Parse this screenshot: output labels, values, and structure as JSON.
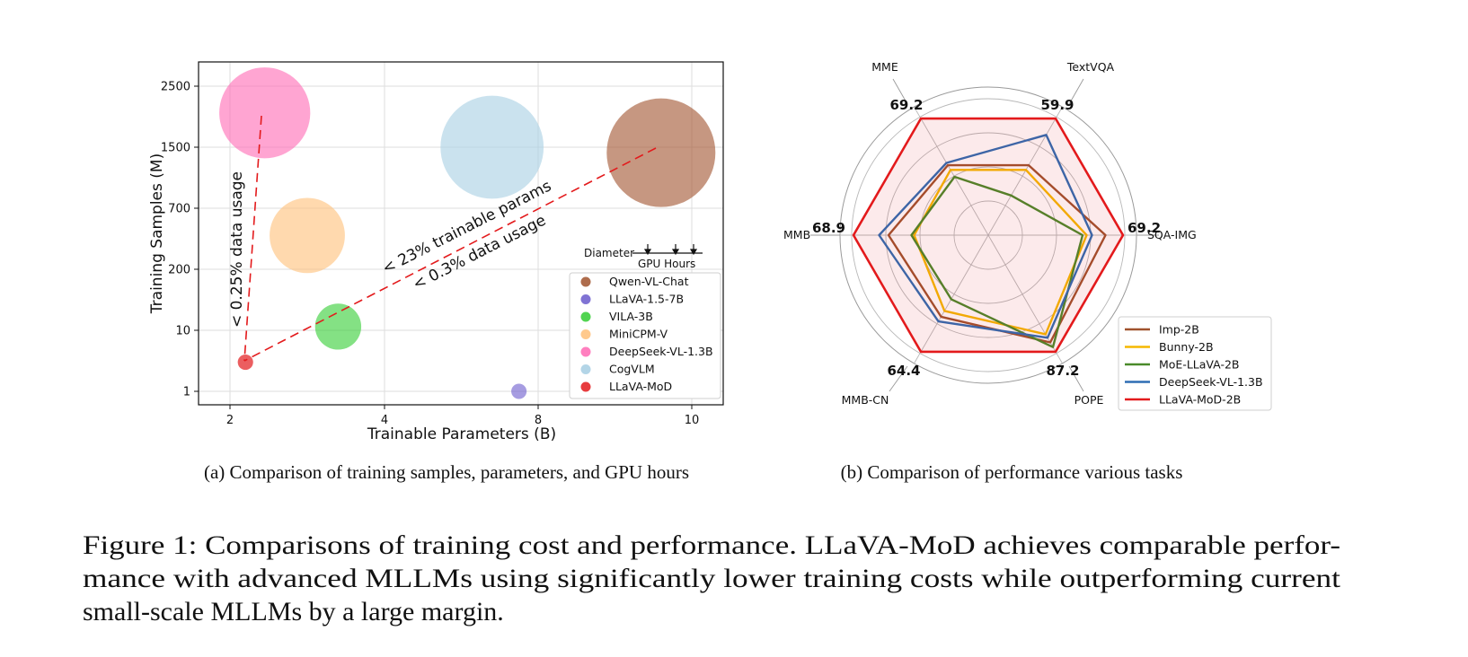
{
  "chart_data": [
    {
      "type": "scatter",
      "title": "Comparison of training samples, parameters, and GPU hours",
      "xlabel": "Trainable Parameters (B)",
      "ylabel": "Training Samples (M)",
      "xlim": [
        1.2,
        10.8
      ],
      "x_ticks": [
        {
          "value": 2,
          "label": "2"
        },
        {
          "value": 4,
          "label": "4"
        },
        {
          "value": 8,
          "label": "8"
        },
        {
          "value": 10,
          "label": "10"
        }
      ],
      "y_ticks": [
        {
          "value": 1,
          "label": "1"
        },
        {
          "value": 10,
          "label": "10"
        },
        {
          "value": 200,
          "label": "200"
        },
        {
          "value": 700,
          "label": "700"
        },
        {
          "value": 1500,
          "label": "1500"
        },
        {
          "value": 2500,
          "label": "2500"
        }
      ],
      "series": [
        {
          "name": "Qwen-VL-Chat",
          "x": 9.6,
          "y": 1400,
          "gpu_hours": 100,
          "color": "#a0522d"
        },
        {
          "name": "LLaVA-1.5-7B",
          "x": 7.5,
          "y": 1,
          "gpu_hours": 2,
          "color": "#6a5acd"
        },
        {
          "name": "VILA-3B",
          "x": 3.4,
          "y": 12,
          "gpu_hours": 18,
          "color": "#32cd32"
        },
        {
          "name": "MiniCPM-V",
          "x": 3.0,
          "y": 400,
          "gpu_hours": 48,
          "color": "#ffc078"
        },
        {
          "name": "DeepSeek-VL-1.3B",
          "x": 2.45,
          "y": 2000,
          "gpu_hours": 70,
          "color": "#ff69b4"
        },
        {
          "name": "CogVLM",
          "x": 6.8,
          "y": 1500,
          "gpu_hours": 90,
          "color": "#a6cee3"
        },
        {
          "name": "LLaVA-MoD",
          "x": 2.2,
          "y": 3,
          "gpu_hours": 2,
          "color": "#e31a1c"
        }
      ],
      "annotations": [
        {
          "text": "< 0.25% data usage"
        },
        {
          "text": "< 23% trainable params"
        },
        {
          "text": "< 0.3% data usage"
        }
      ],
      "size_key": {
        "label": "Diameter",
        "sublabel": "GPU Hours"
      }
    },
    {
      "type": "radar",
      "title": "Comparison of performance various tasks",
      "axes": [
        "TextVQA",
        "MME",
        "MMB",
        "MMB-CN",
        "POPE",
        "SQA-IMG"
      ],
      "max_values": [
        "59.9",
        "69.2",
        "68.9",
        "64.4",
        "87.2",
        "69.2"
      ],
      "ring_count": 5,
      "series": [
        {
          "name": "Imp-2B",
          "color": "#a0522d",
          "values": [
            0.6,
            0.6,
            0.74,
            0.7,
            0.92,
            0.87
          ]
        },
        {
          "name": "Bunny-2B",
          "color": "#f5b800",
          "values": [
            0.56,
            0.56,
            0.55,
            0.65,
            0.85,
            0.73
          ]
        },
        {
          "name": "MoE-LLaVA-2B",
          "color": "#4a8a2a",
          "values": [
            0.34,
            0.5,
            0.57,
            0.55,
            0.96,
            0.7
          ]
        },
        {
          "name": "DeepSeek-VL-1.3B",
          "color": "#2e6db4",
          "values": [
            0.86,
            0.62,
            0.81,
            0.74,
            0.88,
            0.77
          ]
        },
        {
          "name": "LLaVA-MoD-2B",
          "color": "#e31a1c",
          "values": [
            1.0,
            1.0,
            1.0,
            1.0,
            1.0,
            1.0
          ]
        }
      ]
    }
  ],
  "captions": {
    "a": "(a) Comparison of training samples, parameters, and GPU hours",
    "b": "(b) Comparison of performance various tasks",
    "figure_lines": [
      "Figure 1: Comparisons of training cost and performance. LLaVA-MoD achieves comparable perfor-",
      "mance with advanced MLLMs using significantly lower training costs while outperforming current",
      "small-scale MLLMs by a large margin."
    ]
  }
}
